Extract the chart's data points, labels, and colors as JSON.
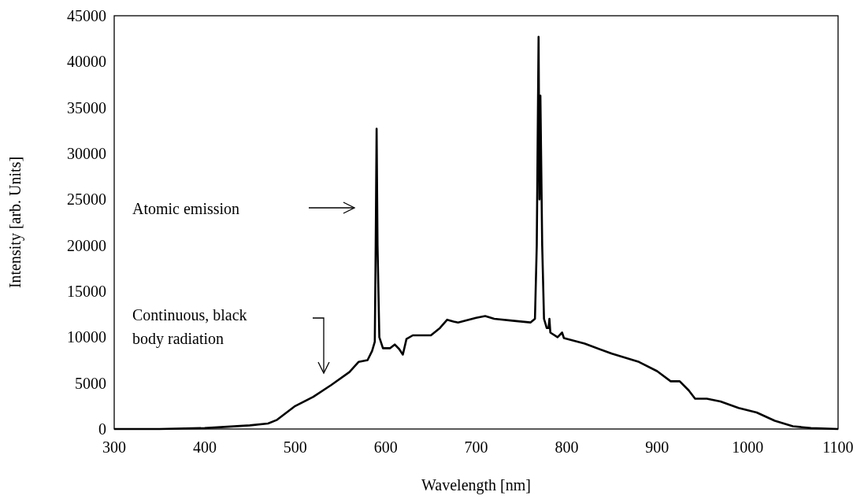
{
  "chart_data": {
    "type": "line",
    "xlabel": "Wavelength [nm]",
    "ylabel": "Intensity [arb. Units]",
    "xlim": [
      300,
      1100
    ],
    "xticks": [
      300,
      400,
      500,
      600,
      700,
      800,
      900,
      1000,
      1100
    ],
    "ylim": [
      0,
      45000
    ],
    "yticks": [
      0,
      5000,
      10000,
      15000,
      20000,
      25000,
      30000,
      35000,
      40000,
      45000
    ],
    "grid": false,
    "marker": "none",
    "line_style": "solid",
    "annotations": [
      "Atomic emission",
      "Continuous, black body radiation"
    ],
    "series": [
      {
        "color": "#000000",
        "x": [
          300,
          350,
          400,
          450,
          470,
          480,
          500,
          520,
          540,
          560,
          570,
          580,
          585,
          588,
          589,
          590,
          591,
          593,
          597,
          605,
          610,
          615,
          619,
          623,
          630,
          650,
          660,
          668,
          675,
          680,
          700,
          710,
          720,
          740,
          760,
          765,
          767,
          769,
          770,
          771,
          773,
          775,
          778,
          780,
          781,
          782,
          790,
          795,
          797,
          820,
          850,
          880,
          900,
          915,
          925,
          935,
          942,
          955,
          970,
          990,
          1010,
          1030,
          1050,
          1070,
          1100
        ],
        "values": [
          0,
          0,
          100,
          400,
          600,
          1000,
          2500,
          3500,
          4800,
          6200,
          7300,
          7500,
          8500,
          9500,
          20000,
          32700,
          20000,
          10000,
          8800,
          8800,
          9200,
          8700,
          8100,
          9800,
          10200,
          10200,
          11000,
          11900,
          11700,
          11600,
          12100,
          12300,
          12000,
          11800,
          11600,
          12000,
          20000,
          42700,
          25000,
          36300,
          20000,
          12000,
          11000,
          11000,
          12000,
          10500,
          10000,
          10500,
          9900,
          9300,
          8200,
          7300,
          6300,
          5200,
          5200,
          4200,
          3300,
          3300,
          3000,
          2300,
          1800,
          900,
          300,
          100,
          0
        ]
      }
    ]
  }
}
